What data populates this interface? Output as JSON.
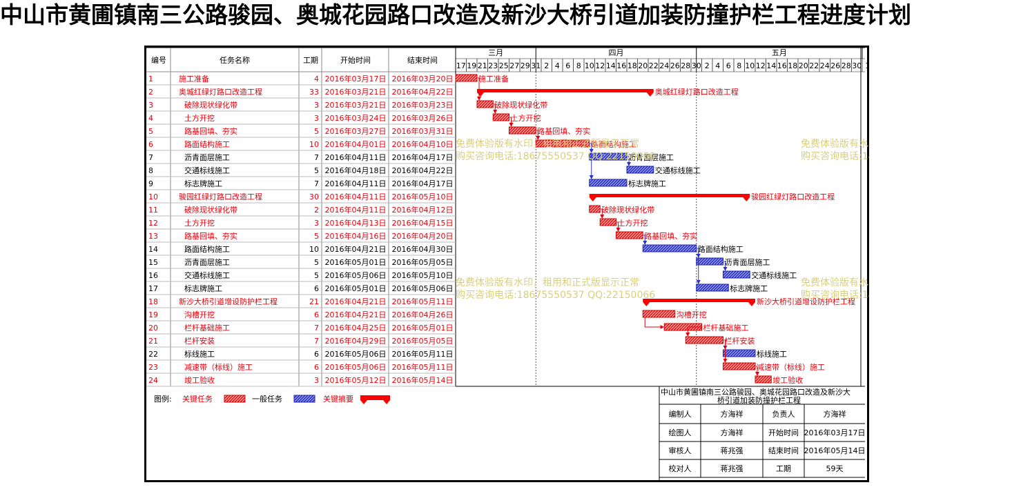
{
  "title": "中山市黄圃镇南三公路骏园、奥城花园路口改造及新沙大桥引道加装防撞护栏工程进度计划",
  "colors": {
    "critical": "#e8000b",
    "normal": "#2b33c6",
    "summary": "#ff0000",
    "watermark": "#d8cf7e"
  },
  "table": {
    "headers": [
      "编号",
      "任务名称",
      "工期",
      "开始时间",
      "结束时间"
    ]
  },
  "timescale": {
    "months": [
      "三月",
      "四月",
      "五月"
    ],
    "days": [
      "17",
      "19",
      "21",
      "23",
      "25",
      "27",
      "29",
      "31",
      "2",
      "4",
      "6",
      "8",
      "10",
      "12",
      "14",
      "16",
      "18",
      "20",
      "22",
      "24",
      "26",
      "28",
      "30",
      "2",
      "4",
      "6",
      "8",
      "10",
      "12",
      "14",
      "16",
      "18",
      "20",
      "22",
      "24",
      "26",
      "28",
      "30",
      "1"
    ]
  },
  "chart_data": {
    "type": "gantt",
    "x_start": "2016-03-17",
    "x_end": "2016-06-01",
    "tasks": [
      {
        "id": "1",
        "name": "施工准备",
        "level": 0,
        "duration": "4",
        "start": "2016年03月17日",
        "end": "2016年03月20日",
        "start_date": "2016-03-17",
        "end_date": "2016-03-20",
        "kind": "critical",
        "label": "施工准备"
      },
      {
        "id": "2",
        "name": "奥城红绿灯路口改造工程",
        "level": 0,
        "duration": "33",
        "start": "2016年03月21日",
        "end": "2016年04月22日",
        "start_date": "2016-03-21",
        "end_date": "2016-04-22",
        "kind": "summary",
        "label": "奥城红绿灯路口改造工程"
      },
      {
        "id": "3",
        "name": "破除现状绿化带",
        "level": 1,
        "duration": "3",
        "start": "2016年03月21日",
        "end": "2016年03月23日",
        "start_date": "2016-03-21",
        "end_date": "2016-03-23",
        "kind": "critical",
        "label": "破除现状绿化带"
      },
      {
        "id": "4",
        "name": "土方开挖",
        "level": 1,
        "duration": "3",
        "start": "2016年03月24日",
        "end": "2016年03月26日",
        "start_date": "2016-03-24",
        "end_date": "2016-03-26",
        "kind": "critical",
        "label": "土方开挖"
      },
      {
        "id": "5",
        "name": "路基回填、夯实",
        "level": 1,
        "duration": "5",
        "start": "2016年03月27日",
        "end": "2016年03月31日",
        "start_date": "2016-03-27",
        "end_date": "2016-03-31",
        "kind": "critical",
        "label": "路基回填、夯实"
      },
      {
        "id": "6",
        "name": "路面结构施工",
        "level": 1,
        "duration": "10",
        "start": "2016年04月01日",
        "end": "2016年04月10日",
        "start_date": "2016-04-01",
        "end_date": "2016-04-10",
        "kind": "critical",
        "label": "路面结构施工"
      },
      {
        "id": "7",
        "name": "沥青面层施工",
        "level": 1,
        "duration": "7",
        "start": "2016年04月11日",
        "end": "2016年04月17日",
        "start_date": "2016-04-11",
        "end_date": "2016-04-17",
        "kind": "normal",
        "label": "沥青面层施工"
      },
      {
        "id": "8",
        "name": "交通标线施工",
        "level": 1,
        "duration": "5",
        "start": "2016年04月18日",
        "end": "2016年04月22日",
        "start_date": "2016-04-18",
        "end_date": "2016-04-22",
        "kind": "normal",
        "label": "交通标线施工"
      },
      {
        "id": "9",
        "name": "标志牌施工",
        "level": 1,
        "duration": "7",
        "start": "2016年04月11日",
        "end": "2016年04月17日",
        "start_date": "2016-04-11",
        "end_date": "2016-04-17",
        "kind": "normal",
        "label": "标志牌施工"
      },
      {
        "id": "10",
        "name": "骏园红绿灯路口改造工程",
        "level": 0,
        "duration": "30",
        "start": "2016年04月11日",
        "end": "2016年05月10日",
        "start_date": "2016-04-11",
        "end_date": "2016-05-10",
        "kind": "summary",
        "label": "骏园红绿灯路口改造工程"
      },
      {
        "id": "11",
        "name": "破除现状绿化带",
        "level": 1,
        "duration": "2",
        "start": "2016年04月11日",
        "end": "2016年04月12日",
        "start_date": "2016-04-11",
        "end_date": "2016-04-12",
        "kind": "critical",
        "label": "破除现状绿化带"
      },
      {
        "id": "12",
        "name": "土方开挖",
        "level": 1,
        "duration": "3",
        "start": "2016年04月13日",
        "end": "2016年04月15日",
        "start_date": "2016-04-13",
        "end_date": "2016-04-15",
        "kind": "critical",
        "label": "土方开挖"
      },
      {
        "id": "13",
        "name": "路基回填、夯实",
        "level": 1,
        "duration": "5",
        "start": "2016年04月16日",
        "end": "2016年04月20日",
        "start_date": "2016-04-16",
        "end_date": "2016-04-20",
        "kind": "critical",
        "label": "路基回填、夯实"
      },
      {
        "id": "14",
        "name": "路面结构施工",
        "level": 1,
        "duration": "10",
        "start": "2016年04月21日",
        "end": "2016年04月30日",
        "start_date": "2016-04-21",
        "end_date": "2016-04-30",
        "kind": "normal",
        "label": "路面结构施工"
      },
      {
        "id": "15",
        "name": "沥青面层施工",
        "level": 1,
        "duration": "5",
        "start": "2016年05月01日",
        "end": "2016年05月05日",
        "start_date": "2016-05-01",
        "end_date": "2016-05-05",
        "kind": "normal",
        "label": "沥青面层施工"
      },
      {
        "id": "16",
        "name": "交通标线施工",
        "level": 1,
        "duration": "5",
        "start": "2016年05月06日",
        "end": "2016年05月10日",
        "start_date": "2016-05-06",
        "end_date": "2016-05-10",
        "kind": "normal",
        "label": "交通标线施工"
      },
      {
        "id": "17",
        "name": "标志牌施工",
        "level": 1,
        "duration": "6",
        "start": "2016年05月01日",
        "end": "2016年05月06日",
        "start_date": "2016-05-01",
        "end_date": "2016-05-06",
        "kind": "normal",
        "label": "标志牌施工"
      },
      {
        "id": "18",
        "name": "新沙大桥引道增设防护栏工程",
        "level": 0,
        "duration": "21",
        "start": "2016年04月21日",
        "end": "2016年05月11日",
        "start_date": "2016-04-21",
        "end_date": "2016-05-11",
        "kind": "summary",
        "label": "新沙大桥引道增设防护栏工程"
      },
      {
        "id": "19",
        "name": "沟槽开挖",
        "level": 1,
        "duration": "6",
        "start": "2016年04月21日",
        "end": "2016年04月26日",
        "start_date": "2016-04-21",
        "end_date": "2016-04-26",
        "kind": "critical",
        "label": "沟槽开挖"
      },
      {
        "id": "20",
        "name": "栏杆基础施工",
        "level": 1,
        "duration": "7",
        "start": "2016年04月25日",
        "end": "2016年05月01日",
        "start_date": "2016-04-25",
        "end_date": "2016-05-01",
        "kind": "critical",
        "label": "栏杆基础施工"
      },
      {
        "id": "21",
        "name": "栏杆安装",
        "level": 1,
        "duration": "7",
        "start": "2016年04月29日",
        "end": "2016年05月05日",
        "start_date": "2016-04-29",
        "end_date": "2016-05-05",
        "kind": "critical",
        "label": "栏杆安装"
      },
      {
        "id": "22",
        "name": "标线施工",
        "level": 1,
        "duration": "6",
        "start": "2016年05月06日",
        "end": "2016年05月11日",
        "start_date": "2016-05-06",
        "end_date": "2016-05-11",
        "kind": "normal",
        "label": "标线施工"
      },
      {
        "id": "23",
        "name": "减速带（标线）施工",
        "level": 1,
        "duration": "6",
        "start": "2016年05月06日",
        "end": "2016年05月11日",
        "start_date": "2016-05-06",
        "end_date": "2016-05-11",
        "kind": "critical",
        "label": "减速带（标线）施工"
      },
      {
        "id": "24",
        "name": "竣工验收",
        "level": 1,
        "duration": "3",
        "start": "2016年05月12日",
        "end": "2016年05月14日",
        "start_date": "2016-05-12",
        "end_date": "2016-05-14",
        "kind": "critical",
        "label": "竣工验收"
      }
    ]
  },
  "legend": {
    "label": "图例:",
    "critical": "关键任务",
    "normal": "一般任务",
    "summary": "关键摘要"
  },
  "info": {
    "project_title": "中山市黄圃镇南三公路骏园、奥城花园路口改造及新沙大桥引道加装防撞护栏工程",
    "rows": [
      [
        "编制人",
        "方海祥",
        "负责人",
        "方海祥"
      ],
      [
        "绘图人",
        "方海祥",
        "开始时间",
        "2016年03月17日"
      ],
      [
        "审核人",
        "蒋兆强",
        "结束时间",
        "2016年05月14日"
      ],
      [
        "校对人",
        "蒋兆强",
        "工期",
        "59天"
      ]
    ]
  },
  "watermark": {
    "line1": "免费体验版有水印，租用和正式版显示正常",
    "line2": "购买咨询电话:18675550537 QQ:22150066"
  }
}
